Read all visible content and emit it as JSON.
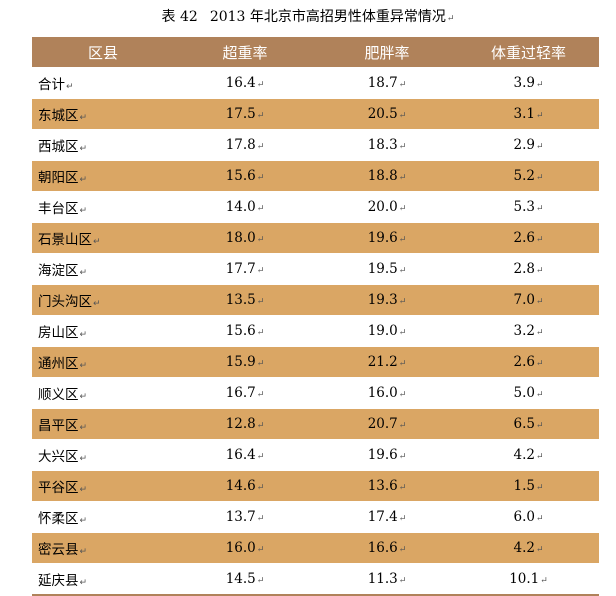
{
  "caption": {
    "number": "表 42",
    "title": "2013 年北京市高招男性体重异常情况"
  },
  "mark": "↵",
  "colors": {
    "header_bg": "#b0825a",
    "alt_row_bg": "#daa664",
    "header_text": "#ffffff"
  },
  "table": {
    "headers": [
      "区县",
      "超重率",
      "肥胖率",
      "体重过轻率"
    ],
    "rows": [
      [
        "合计",
        "16.4",
        "18.7",
        "3.9"
      ],
      [
        "东城区",
        "17.5",
        "20.5",
        "3.1"
      ],
      [
        "西城区",
        "17.8",
        "18.3",
        "2.9"
      ],
      [
        "朝阳区",
        "15.6",
        "18.8",
        "5.2"
      ],
      [
        "丰台区",
        "14.0",
        "20.0",
        "5.3"
      ],
      [
        "石景山区",
        "18.0",
        "19.6",
        "2.6"
      ],
      [
        "海淀区",
        "17.7",
        "19.5",
        "2.8"
      ],
      [
        "门头沟区",
        "13.5",
        "19.3",
        "7.0"
      ],
      [
        "房山区",
        "15.6",
        "19.0",
        "3.2"
      ],
      [
        "通州区",
        "15.9",
        "21.2",
        "2.6"
      ],
      [
        "顺义区",
        "16.7",
        "16.0",
        "5.0"
      ],
      [
        "昌平区",
        "12.8",
        "20.7",
        "6.5"
      ],
      [
        "大兴区",
        "16.4",
        "19.6",
        "4.2"
      ],
      [
        "平谷区",
        "14.6",
        "13.6",
        "1.5"
      ],
      [
        "怀柔区",
        "13.7",
        "17.4",
        "6.0"
      ],
      [
        "密云县",
        "16.0",
        "16.6",
        "4.2"
      ],
      [
        "延庆县",
        "14.5",
        "11.3",
        "10.1"
      ]
    ]
  }
}
